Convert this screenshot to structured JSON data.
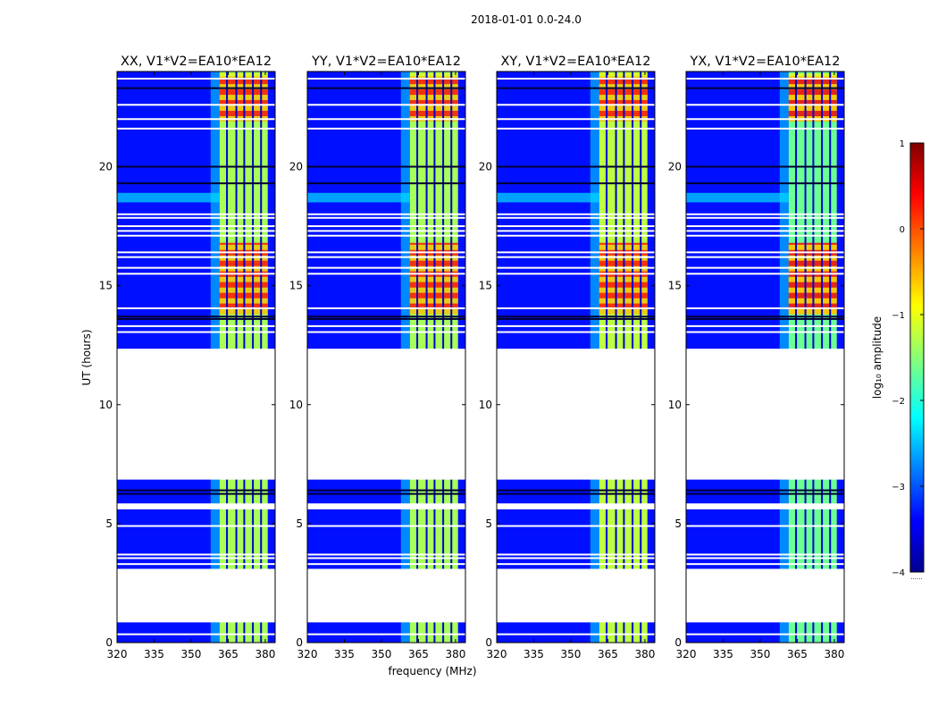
{
  "chart_data": {
    "type": "heatmap",
    "suptitle": "2018-01-01 0.0-24.0",
    "xlabel": "frequency (MHz)",
    "ylabel": "UT (hours)",
    "xlim": [
      320,
      384
    ],
    "ylim": [
      0,
      24
    ],
    "xticks": [
      320,
      335,
      350,
      365,
      380
    ],
    "yticks": [
      0,
      5,
      10,
      15,
      20
    ],
    "colormap": "jet",
    "colorbar": {
      "label": "log₁₀ amplitude",
      "range": [
        -4,
        1
      ],
      "ticks": [
        1,
        0,
        -1,
        -2,
        -3,
        -4
      ],
      "tick_labels": [
        "1",
        "0",
        "−1",
        "−2",
        "−3",
        "−4"
      ],
      "offset_text": "......"
    },
    "colors": {
      "background_level": "#1a2ef0",
      "band_level": "#66ff8c",
      "hot_level": "#d42a1a",
      "flag": "#ffffff"
    },
    "panels": [
      {
        "title": "XX, V1*V2=EA10*EA12",
        "band_amplitude": -1.3,
        "hot_amplitude": 0.3
      },
      {
        "title": "YY, V1*V2=EA10*EA12",
        "band_amplitude": -1.3,
        "hot_amplitude": 0.3
      },
      {
        "title": "XY, V1*V2=EA10*EA12",
        "band_amplitude": -1.2,
        "hot_amplitude": 0.3
      },
      {
        "title": "YX, V1*V2=EA10*EA12",
        "band_amplitude": -1.6,
        "hot_amplitude": 0.4
      }
    ],
    "flagged_time_ranges_hours": [
      [
        0.85,
        3.1
      ],
      [
        5.6,
        5.85
      ],
      [
        6.85,
        12.35
      ]
    ],
    "flag_lines_hours": [
      0.35,
      3.3,
      3.55,
      3.7,
      4.9,
      13.05,
      13.3,
      14.05,
      15.5,
      15.75,
      16.2,
      16.4,
      17.1,
      17.3,
      17.5,
      17.85,
      18.0,
      21.6,
      22.0,
      22.6,
      23.7
    ],
    "dark_lines_hours": [
      6.25,
      6.4,
      13.6,
      13.7,
      19.3,
      20.0,
      23.3
    ],
    "signal_band_mhz": [
      361.5,
      381
    ],
    "channel_gaps_mhz": [
      364.5,
      368.3,
      371.5,
      375.0,
      378.3
    ],
    "hot_time_ranges_hours": [
      [
        13.8,
        16.8
      ],
      [
        21.9,
        23.8
      ]
    ]
  }
}
